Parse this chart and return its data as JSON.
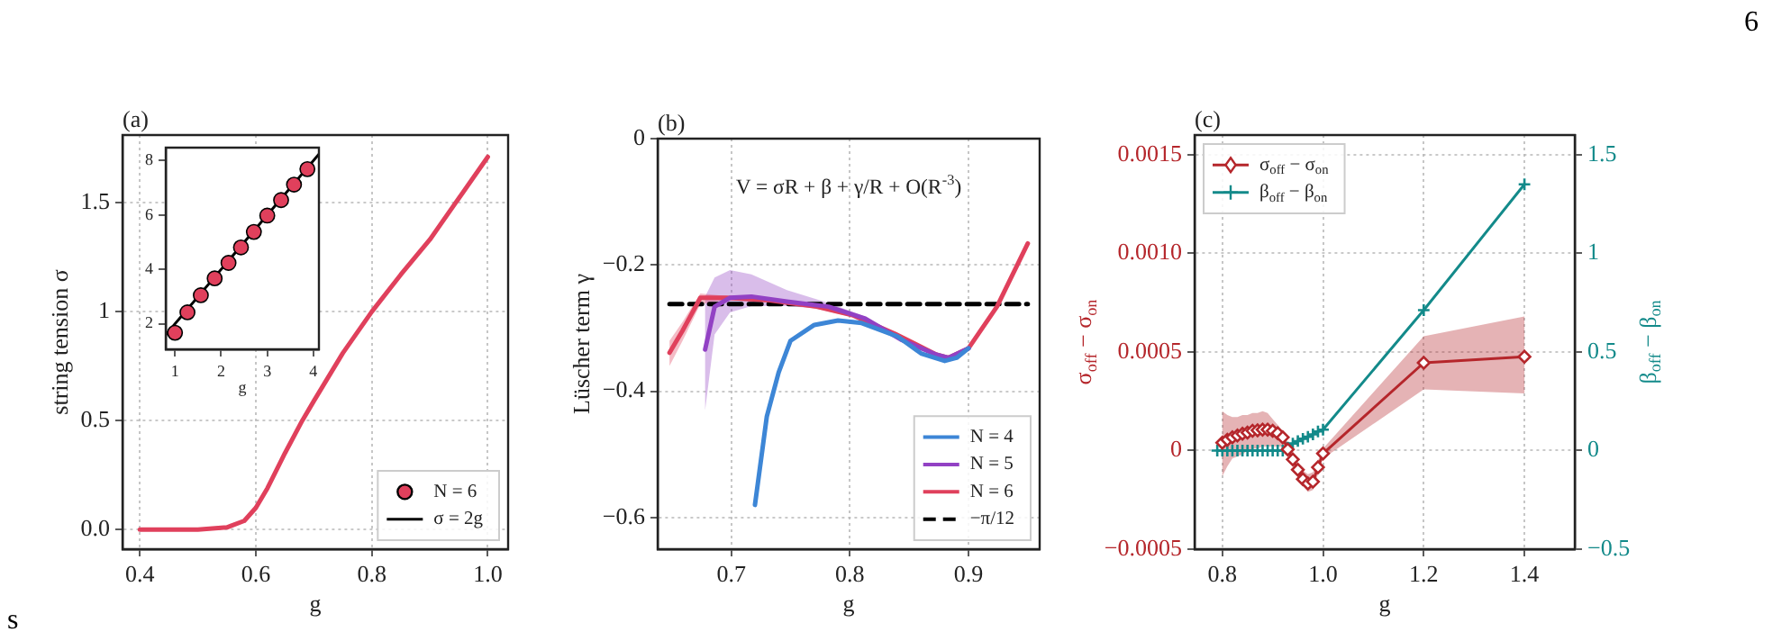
{
  "chart_data": [
    {
      "type": "line",
      "title": "(a)",
      "xlabel": "g",
      "ylabel": "string tension σ",
      "xlim": [
        0.37,
        1.035
      ],
      "ylim": [
        -0.09,
        1.81
      ],
      "xticks": [
        0.4,
        0.6,
        0.8,
        {
          "value": 1.0,
          "label": "1.0"
        }
      ],
      "yticks": [
        {
          "value": 0,
          "label": "0.0"
        },
        0.5,
        1,
        1.5
      ],
      "grid": true,
      "marker": "none",
      "annotations": [
        "6",
        "s"
      ],
      "x": [
        0.4,
        0.45,
        0.5,
        0.55,
        0.58,
        0.6,
        0.62,
        0.65,
        0.68,
        0.7,
        0.75,
        0.8,
        0.85,
        0.9,
        0.95,
        1.0
      ],
      "series": [
        {
          "color": "#e0405c",
          "values": [
            0,
            0,
            0,
            0.01,
            0.04,
            0.1,
            0.19,
            0.35,
            0.5,
            0.59,
            0.81,
            1.0,
            1.17,
            1.33,
            1.52,
            1.71
          ]
        }
      ]
    },
    {
      "type": "scatter",
      "xlabel": "g",
      "xlim": [
        0.8,
        4.12
      ],
      "ylim": [
        1.06,
        8.48
      ],
      "xticks": [
        1,
        2,
        3,
        4
      ],
      "yticks": [
        2,
        4,
        6,
        8
      ],
      "grid": false,
      "legend": "bottom right",
      "series": [
        {
          "name": "N = 6",
          "marker": "circle",
          "color": "#e0405c",
          "x": [
            1.0,
            1.27,
            1.56,
            1.86,
            2.16,
            2.43,
            2.71,
            3.0,
            3.3,
            3.58,
            3.87
          ],
          "values": [
            1.67,
            2.42,
            3.05,
            3.67,
            4.24,
            4.81,
            5.38,
            5.98,
            6.55,
            7.12,
            7.69
          ]
        },
        {
          "name": "σ = 2g",
          "type": "line",
          "marker": "none",
          "color": "#000000",
          "x": [
            0.8,
            4.12
          ],
          "values": [
            1.6,
            8.24
          ]
        }
      ]
    },
    {
      "type": "line",
      "title": "(b)",
      "xlabel": "g",
      "ylabel": "Lüscher term γ",
      "xlim": [
        0.638,
        0.96
      ],
      "ylim": [
        -0.65,
        0
      ],
      "xticks": [
        0.7,
        0.8,
        0.9
      ],
      "yticks": [
        {
          "value": -0.6,
          "label": "−0.6"
        },
        {
          "value": -0.4,
          "label": "−0.4"
        },
        {
          "value": -0.2,
          "label": "−0.2"
        },
        0
      ],
      "grid": true,
      "legend": "bottom right",
      "marker": "none",
      "annotations": [
        "V = σR + β + γ/R + O(R$^{-3}$)"
      ],
      "series": [
        {
          "name": "N = 4",
          "color": "#3d86d6",
          "x": [
            0.72,
            0.73,
            0.74,
            0.75,
            0.77,
            0.79,
            0.81,
            0.84,
            0.86,
            0.88,
            0.89,
            0.9
          ],
          "values": [
            -0.58,
            -0.44,
            -0.37,
            -0.32,
            -0.295,
            -0.288,
            -0.292,
            -0.313,
            -0.34,
            -0.352,
            -0.347,
            -0.332
          ]
        },
        {
          "name": "N = 5",
          "color": "#9241c4",
          "x": [
            0.678,
            0.686,
            0.699,
            0.717,
            0.747,
            0.782,
            0.813,
            0.843,
            0.873,
            0.883,
            0.9
          ],
          "values": [
            -0.334,
            -0.266,
            -0.252,
            -0.25,
            -0.258,
            -0.266,
            -0.285,
            -0.318,
            -0.342,
            -0.347,
            -0.332
          ],
          "lower": [
            -0.43,
            -0.31,
            -0.275,
            -0.265,
            -0.265,
            -0.27,
            -0.288,
            -0.321,
            -0.345,
            -0.35,
            -0.335
          ],
          "upper": [
            -0.25,
            -0.22,
            -0.208,
            -0.215,
            -0.24,
            -0.26,
            -0.282,
            -0.315,
            -0.339,
            -0.344,
            -0.329
          ]
        },
        {
          "name": "N = 6",
          "color": "#e0405c",
          "x": [
            0.648,
            0.659,
            0.674,
            0.696,
            0.732,
            0.772,
            0.803,
            0.838,
            0.873,
            0.883,
            0.9,
            0.924,
            0.95
          ],
          "values": [
            -0.339,
            -0.304,
            -0.252,
            -0.252,
            -0.256,
            -0.266,
            -0.28,
            -0.309,
            -0.342,
            -0.347,
            -0.332,
            -0.266,
            -0.166
          ],
          "lower": [
            -0.36,
            -0.32,
            -0.262,
            -0.255,
            -0.259,
            -0.269,
            -0.283,
            -0.312,
            -0.345,
            -0.35,
            -0.335,
            -0.269,
            -0.169
          ],
          "upper": [
            -0.32,
            -0.29,
            -0.245,
            -0.249,
            -0.253,
            -0.263,
            -0.277,
            -0.306,
            -0.339,
            -0.344,
            -0.329,
            -0.263,
            -0.163
          ]
        },
        {
          "name": "−π/12",
          "color": "#000000",
          "line_style": "dashed",
          "x": [
            0.648,
            0.95
          ],
          "values": [
            -0.262,
            -0.262
          ]
        }
      ]
    },
    {
      "type": "line",
      "title": "(c)",
      "xlabel": "g",
      "ylabel": "σ$_{off}$ − σ$_{on}$",
      "y2label": "β$_{off}$ − β$_{on}$",
      "xlim": [
        0.745,
        1.5
      ],
      "ylim": [
        -0.0005,
        0.0016
      ],
      "y2lim": [
        -0.5,
        1.6
      ],
      "xticks": [
        0.8,
        {
          "value": 1.0,
          "label": "1.0"
        },
        1.2,
        1.4
      ],
      "yticks": [
        {
          "value": -0.0005,
          "label": "−0.0005"
        },
        0,
        0.0005,
        {
          "value": 0.001,
          "label": "0.0010"
        },
        0.0015
      ],
      "y2ticks": [
        {
          "value": -0.5,
          "label": "−0.5"
        },
        0,
        0.5,
        1,
        1.5
      ],
      "grid": true,
      "legend": "top left",
      "series": [
        {
          "name": "σ$_{off}$ − σ$_{on}$",
          "color": "#b5262b",
          "marker": "diamond",
          "x": [
            0.8,
            0.81,
            0.82,
            0.83,
            0.84,
            0.85,
            0.86,
            0.87,
            0.88,
            0.89,
            0.9,
            0.91,
            0.92,
            0.93,
            0.94,
            0.95,
            0.96,
            0.97,
            0.98,
            0.99,
            1.0,
            1.2,
            1.4
          ],
          "values": [
            4e-05,
            5.5e-05,
            6.7e-05,
            7.6e-05,
            8.5e-05,
            9.1e-05,
            0.0001,
            0.000103,
            0.000106,
            0.000106,
            0.0001,
            8.8e-05,
            6.7e-05,
            6e-06,
            -4.5e-05,
            -9.7e-05,
            -0.000145,
            -0.000167,
            -0.000158,
            -8.5e-05,
            -1.5e-05,
            0.000445,
            0.000476
          ],
          "lower": [
            -0.00013,
            -8e-05,
            -4e-05,
            -3e-05,
            -2e-05,
            0,
            1e-05,
            1e-05,
            2e-05,
            2e-05,
            2e-05,
            2e-05,
            2e-05,
            -3e-05,
            -8e-05,
            -0.00013,
            -0.00018,
            -0.00021,
            -0.0002,
            -0.00012,
            -4e-05,
            0.00031,
            0.00029
          ],
          "upper": [
            0.0002,
            0.00018,
            0.00017,
            0.00017,
            0.00018,
            0.00018,
            0.00019,
            0.00019,
            0.0002,
            0.00019,
            0.00016,
            0.00013,
            0.0001,
            4e-05,
            -1e-05,
            -6e-05,
            -0.0001,
            -0.00012,
            -0.00011,
            -5e-05,
            1e-05,
            0.00058,
            0.00068
          ]
        },
        {
          "name": "β$_{off}$ − β$_{on}$",
          "color": "#138a8a",
          "marker": "cross",
          "axis": "y2",
          "x": [
            0.79,
            0.8,
            0.81,
            0.82,
            0.83,
            0.84,
            0.85,
            0.86,
            0.87,
            0.88,
            0.89,
            0.9,
            0.91,
            0.92,
            0.93,
            0.94,
            0.95,
            0.96,
            0.97,
            0.98,
            0.99,
            1.0,
            1.2,
            1.4
          ],
          "values": [
            0,
            0,
            0,
            0,
            0,
            0,
            0,
            0,
            0,
            0,
            0,
            0,
            0,
            0,
            0.015,
            0.036,
            0.048,
            0.06,
            0.07,
            0.082,
            0.097,
            0.106,
            0.712,
            1.35
          ]
        }
      ]
    }
  ]
}
